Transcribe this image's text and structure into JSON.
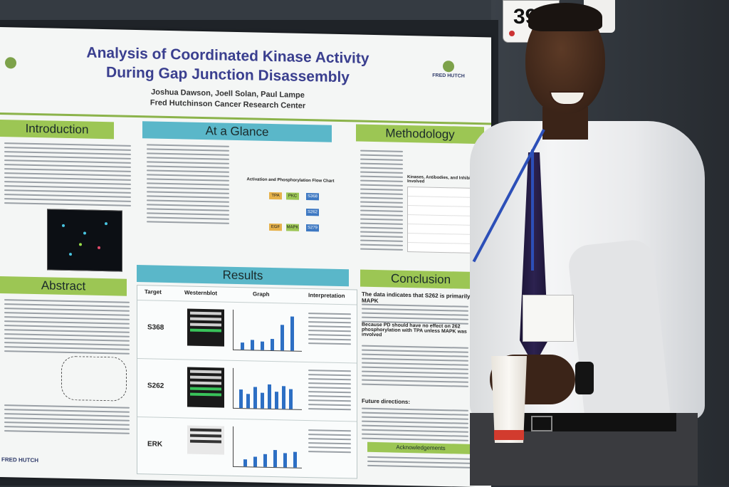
{
  "poster": {
    "title_line1": "Analysis of Coordinated Kinase Activity",
    "title_line2": "During Gap Junction Disassembly",
    "authors": "Joshua Dawson, Joell Solan, Paul Lampe",
    "institution": "Fred Hutchinson Cancer Research Center",
    "logo_text": "FRED HUTCH",
    "sections": {
      "introduction": "Introduction",
      "at_a_glance": "At a Glance",
      "methodology": "Methodology",
      "abstract": "Abstract",
      "results": "Results",
      "conclusion": "Conclusion",
      "acknowledgements": "Acknowledgements"
    },
    "flow_chart_title": "Activation and Phosphorylation Flow Chart",
    "flow_nodes": [
      "TPA",
      "PKC",
      "S368",
      "S262",
      "EGF",
      "MAPK",
      "S279"
    ],
    "methodology_table_title": "Kinases, Antibodies, and Inhibitors Involved",
    "results_columns": [
      "Target",
      "Westernblot",
      "Graph",
      "Interpretation"
    ],
    "results_targets": [
      "S368",
      "S262",
      "ERK"
    ],
    "conclusion_lead": "The data indicates that S262 is primarily a MAPK",
    "conclusion_sub": "Because PD should have no effect on 262 phosphorylation with TPA unless MAPK was involved",
    "future_directions": "Future directions:"
  },
  "tag_number": "39",
  "colors": {
    "title": "#3a3f8f",
    "green_header": "#9cc654",
    "teal_header": "#5ab7c9",
    "lanyard": "#2c4fb8",
    "tie": "#2c2250"
  }
}
